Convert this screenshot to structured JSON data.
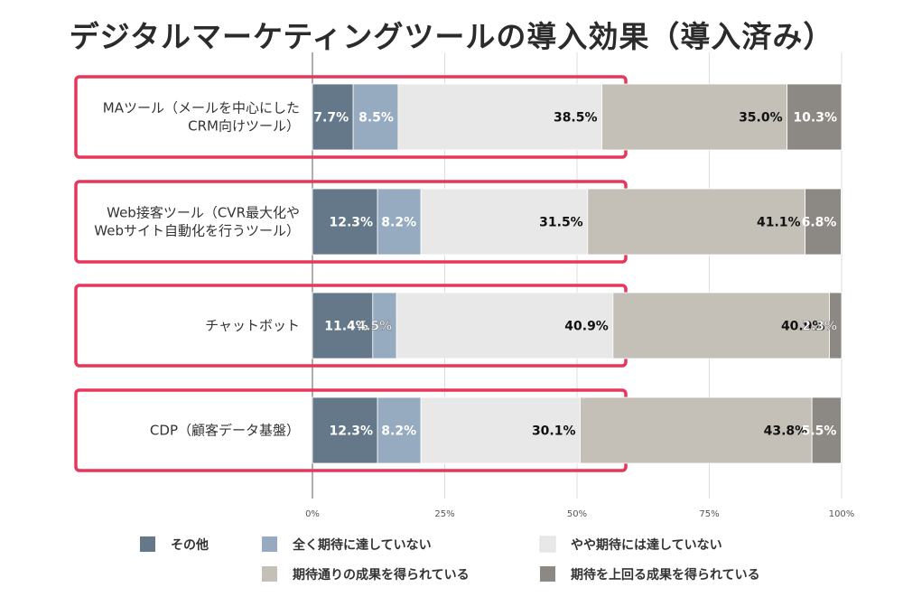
{
  "chart_data": {
    "type": "bar",
    "orientation": "horizontal",
    "stacked": true,
    "title": "デジタルマーケティングツールの導入効果（導入済み）",
    "categories": [
      [
        "MAツール（メールを中心にした",
        "CRM向けツール）"
      ],
      [
        "Web接客ツール（CVR最大化や",
        "Webサイト自動化を行うツール）"
      ],
      [
        "チャットボット"
      ],
      [
        "CDP（顧客データ基盤）"
      ]
    ],
    "series": [
      {
        "name": "その他",
        "color": "#65788a",
        "label_color": "#ffffff",
        "values": [
          7.7,
          12.3,
          11.4,
          12.3
        ]
      },
      {
        "name": "全く期待に達していない",
        "color": "#96abbf",
        "label_color": "#ffffff",
        "values": [
          8.5,
          8.2,
          4.5,
          8.2
        ]
      },
      {
        "name": "やや期待には達していない",
        "color": "#e8e8e8",
        "label_color": "#111111",
        "values": [
          38.5,
          31.5,
          40.9,
          30.1
        ]
      },
      {
        "name": "期待通りの成果を得られている",
        "color": "#c4c0b8",
        "label_color": "#111111",
        "values": [
          35.0,
          41.1,
          40.9,
          43.8
        ]
      },
      {
        "name": "期待を上回る成果を得られている",
        "color": "#8c8883",
        "label_color": "#ffffff",
        "values": [
          10.3,
          6.8,
          2.3,
          5.5
        ]
      }
    ],
    "value_labels": [
      [
        "7.7%",
        "8.5%",
        "38.5%",
        "35.0%",
        "10.3%"
      ],
      [
        "12.3%",
        "8.2%",
        "31.5%",
        "41.1%",
        "6.8%"
      ],
      [
        "11.4%",
        "4.5%",
        "40.9%",
        "40.9%",
        "2.3%"
      ],
      [
        "12.3%",
        "8.2%",
        "30.1%",
        "43.8%",
        "5.5%"
      ]
    ],
    "xlim": [
      0,
      100
    ],
    "x_ticks": [
      "0%",
      "25%",
      "50%",
      "75%",
      "100%"
    ],
    "grid": true,
    "legend_position": "bottom",
    "highlight_boxes": true,
    "highlight_color": "#e8365a"
  }
}
